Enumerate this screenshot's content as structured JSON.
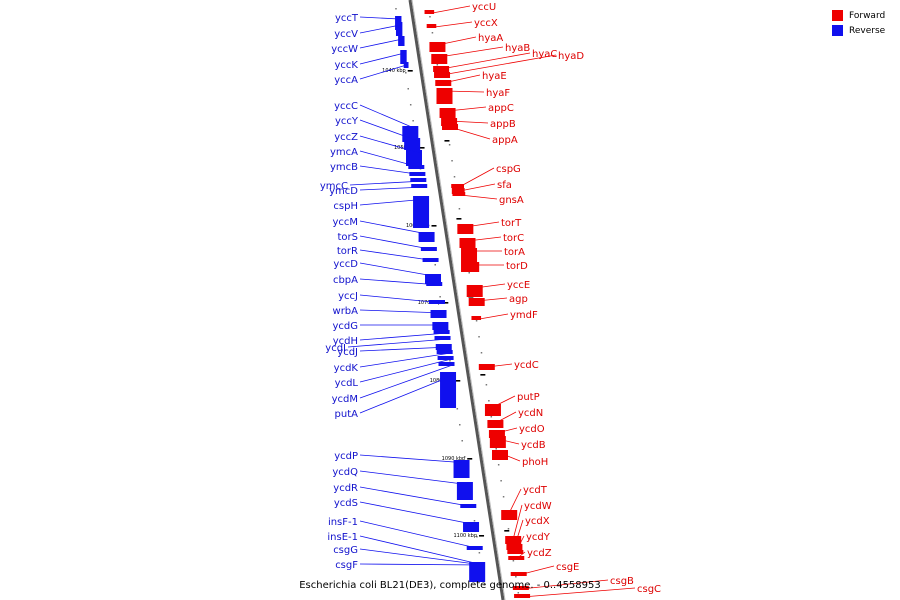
{
  "caption": "Escherichia coli BL21(DE3), complete genome. - 0..4558953",
  "legend": {
    "forward": {
      "label": "Forward",
      "color": "#ee0000"
    },
    "reverse": {
      "label": "Reverse",
      "color": "#1010ee"
    }
  },
  "colors": {
    "forward": "#ee0000",
    "reverse": "#1010ee",
    "axis": "#888888"
  },
  "ticks": [
    "1040 kbp",
    "1050 kbp",
    "1060 kbp",
    "1070 kbp",
    "1080 kbp",
    "1090 kbp",
    "1100 kbp"
  ],
  "reverse_genes": [
    "yccT",
    "yccV",
    "yccW",
    "yccK",
    "yccA",
    "yccC",
    "yccY",
    "yccZ",
    "ymcA",
    "ymcB",
    "ymcC",
    "ymcD",
    "cspH",
    "yccM",
    "torS",
    "torR",
    "yccD",
    "cbpA",
    "yccJ",
    "wrbA",
    "ycdG",
    "ycdH",
    "ycdI",
    "ycdJ",
    "ycdK",
    "ycdL",
    "ycdM",
    "putA",
    "ycdP",
    "ycdQ",
    "ycdR",
    "ycdS",
    "insF-1",
    "insE-1",
    "csgG",
    "csgF"
  ],
  "forward_genes": [
    "yccU",
    "yccX",
    "hyaA",
    "hyaB",
    "hyaC",
    "hyaD",
    "hyaE",
    "hyaF",
    "appC",
    "appB",
    "appA",
    "cspG",
    "sfa",
    "gnsA",
    "torT",
    "torC",
    "torA",
    "torD",
    "yccE",
    "agp",
    "ymdF",
    "ycdC",
    "putP",
    "ycdN",
    "ycdO",
    "ycdB",
    "phoH",
    "ycdT",
    "ycdW",
    "ycdX",
    "ycdY",
    "ycdZ",
    "csgE",
    "csgB",
    "csgC"
  ]
}
